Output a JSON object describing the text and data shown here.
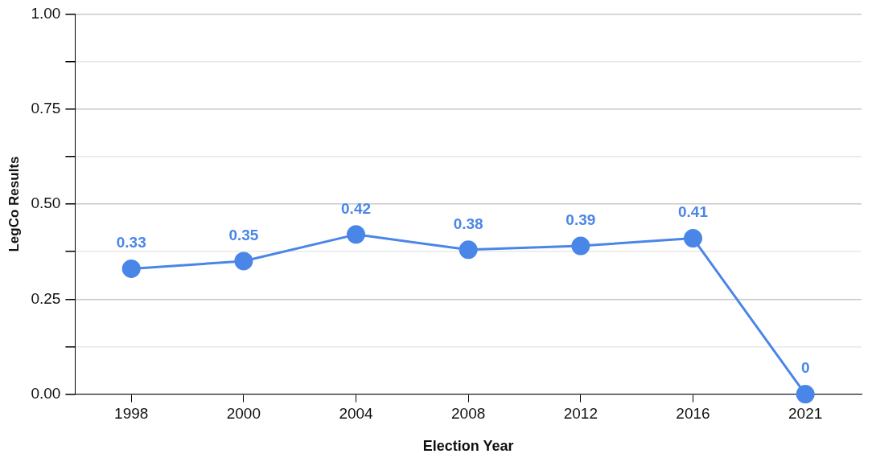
{
  "chart_data": {
    "type": "line",
    "xlabel": "Election Year",
    "ylabel": "LegCo Results",
    "categories": [
      "1998",
      "2000",
      "2004",
      "2008",
      "2012",
      "2016",
      "2021"
    ],
    "series": [
      {
        "color": "#4a86e8",
        "values": [
          0.33,
          0.35,
          0.42,
          0.38,
          0.39,
          0.41,
          0
        ]
      }
    ],
    "ylim": [
      0,
      1
    ],
    "yticks": [
      {
        "value": 0,
        "label": "0.00"
      },
      {
        "value": 0.125,
        "label": null
      },
      {
        "value": 0.25,
        "label": "0.25"
      },
      {
        "value": 0.375,
        "label": null
      },
      {
        "value": 0.5,
        "label": "0.50"
      },
      {
        "value": 0.625,
        "label": null
      },
      {
        "value": 0.75,
        "label": "0.75"
      },
      {
        "value": 0.875,
        "label": null
      },
      {
        "value": 1,
        "label": "1.00"
      }
    ],
    "grid": "y",
    "marker": "circle",
    "line_style": "solid",
    "data_labels": true,
    "legend": false
  }
}
